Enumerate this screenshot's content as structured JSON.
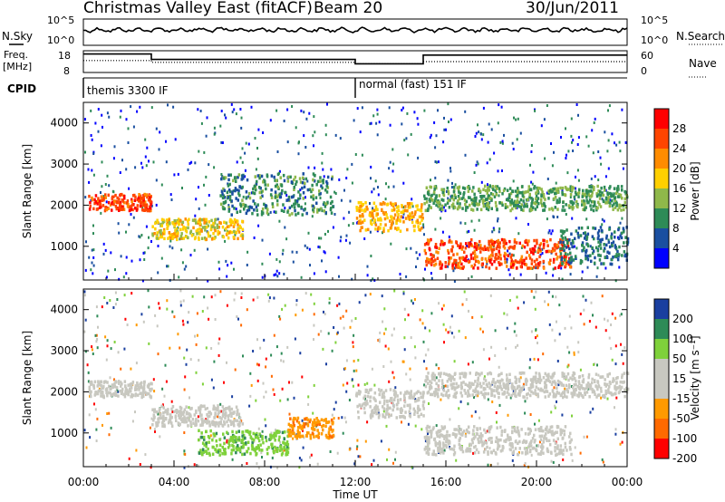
{
  "header": {
    "title": "Christmas Valley East (fitACF)",
    "beam": "Beam 20",
    "date": "30/Jun/2011"
  },
  "panels": {
    "nsky_label": "N.Sky",
    "nsearch_label": "N.Search",
    "nsky_ticks": [
      "10^5",
      "10^0"
    ],
    "freq_label_line1": "Freq.",
    "freq_label_line2": "[MHz]",
    "freq_ticks": [
      "18",
      "8"
    ],
    "nave_label": "Nave",
    "nave_ticks": [
      "60",
      "0"
    ],
    "cpid_label": "CPID",
    "cpid_modes": [
      {
        "name": "themis 3300 IF",
        "start_hour": 0,
        "end_hour": 12
      },
      {
        "name": "normal (fast) 151 IF",
        "start_hour": 12,
        "end_hour": 24
      }
    ]
  },
  "chart_data": [
    {
      "type": "heatmap",
      "name": "power",
      "ylabel": "Slant Range [km]",
      "xlabel": "Time UT",
      "y_ticks": [
        1000,
        2000,
        3000,
        4000
      ],
      "x_ticks": [
        "00:00",
        "04:00",
        "08:00",
        "12:00",
        "16:00",
        "20:00",
        "00:00"
      ],
      "xlim_hours": [
        0,
        24
      ],
      "ylim_km": [
        180,
        4500
      ],
      "colorbar": {
        "label": "Power [dB]",
        "ticks": [
          "28",
          "24",
          "20",
          "16",
          "12",
          "8",
          "4"
        ],
        "colors": [
          "#ff0000",
          "#ff4500",
          "#ff8c00",
          "#ffd000",
          "#8fb84a",
          "#2e8b57",
          "#1a4fa0",
          "#0000ff"
        ]
      },
      "echo_bands": [
        {
          "t0": 0.2,
          "t1": 3.0,
          "r0": 1900,
          "r1": 2300,
          "level": 26
        },
        {
          "t0": 3.0,
          "t1": 7.0,
          "r0": 1200,
          "r1": 1700,
          "level": 18
        },
        {
          "t0": 6.0,
          "t1": 11.0,
          "r0": 1800,
          "r1": 2800,
          "level": 10
        },
        {
          "t0": 12.0,
          "t1": 15.0,
          "r0": 1400,
          "r1": 2100,
          "level": 20
        },
        {
          "t0": 15.0,
          "t1": 21.5,
          "r0": 500,
          "r1": 1200,
          "level": 26
        },
        {
          "t0": 15.0,
          "t1": 24.0,
          "r0": 1900,
          "r1": 2500,
          "level": 12
        },
        {
          "t0": 21.0,
          "t1": 24.0,
          "r0": 600,
          "r1": 1500,
          "level": 8
        }
      ]
    },
    {
      "type": "heatmap",
      "name": "velocity",
      "ylabel": "Slant Range [km]",
      "xlabel": "Time UT",
      "y_ticks": [
        1000,
        2000,
        3000,
        4000
      ],
      "x_ticks": [
        "00:00",
        "04:00",
        "08:00",
        "12:00",
        "16:00",
        "20:00",
        "00:00"
      ],
      "xlim_hours": [
        0,
        24
      ],
      "ylim_km": [
        180,
        4500
      ],
      "colorbar": {
        "label": "Velocity [m s⁻¹]",
        "ticks": [
          "200",
          "100",
          "50",
          "15",
          "-15",
          "-50",
          "-100",
          "-200"
        ],
        "colors": [
          "#1a3fa0",
          "#2e8b57",
          "#7fd13b",
          "#c8c8c0",
          "#c8c8c0",
          "#ff9a00",
          "#ff6a00",
          "#ff0000"
        ]
      },
      "echo_bands": [
        {
          "t0": 0.2,
          "t1": 3.0,
          "r0": 1900,
          "r1": 2300,
          "velocity": 0
        },
        {
          "t0": 3.0,
          "t1": 7.0,
          "r0": 1200,
          "r1": 1700,
          "velocity": 0
        },
        {
          "t0": 5.0,
          "t1": 9.0,
          "r0": 500,
          "r1": 1100,
          "velocity": 60
        },
        {
          "t0": 12.0,
          "t1": 15.0,
          "r0": 1400,
          "r1": 2100,
          "velocity": 0
        },
        {
          "t0": 15.0,
          "t1": 21.5,
          "r0": 500,
          "r1": 1200,
          "velocity": 0
        },
        {
          "t0": 15.0,
          "t1": 24.0,
          "r0": 1900,
          "r1": 2500,
          "velocity": 0
        },
        {
          "t0": 9.0,
          "t1": 11.0,
          "r0": 900,
          "r1": 1400,
          "velocity": -60
        }
      ]
    }
  ]
}
